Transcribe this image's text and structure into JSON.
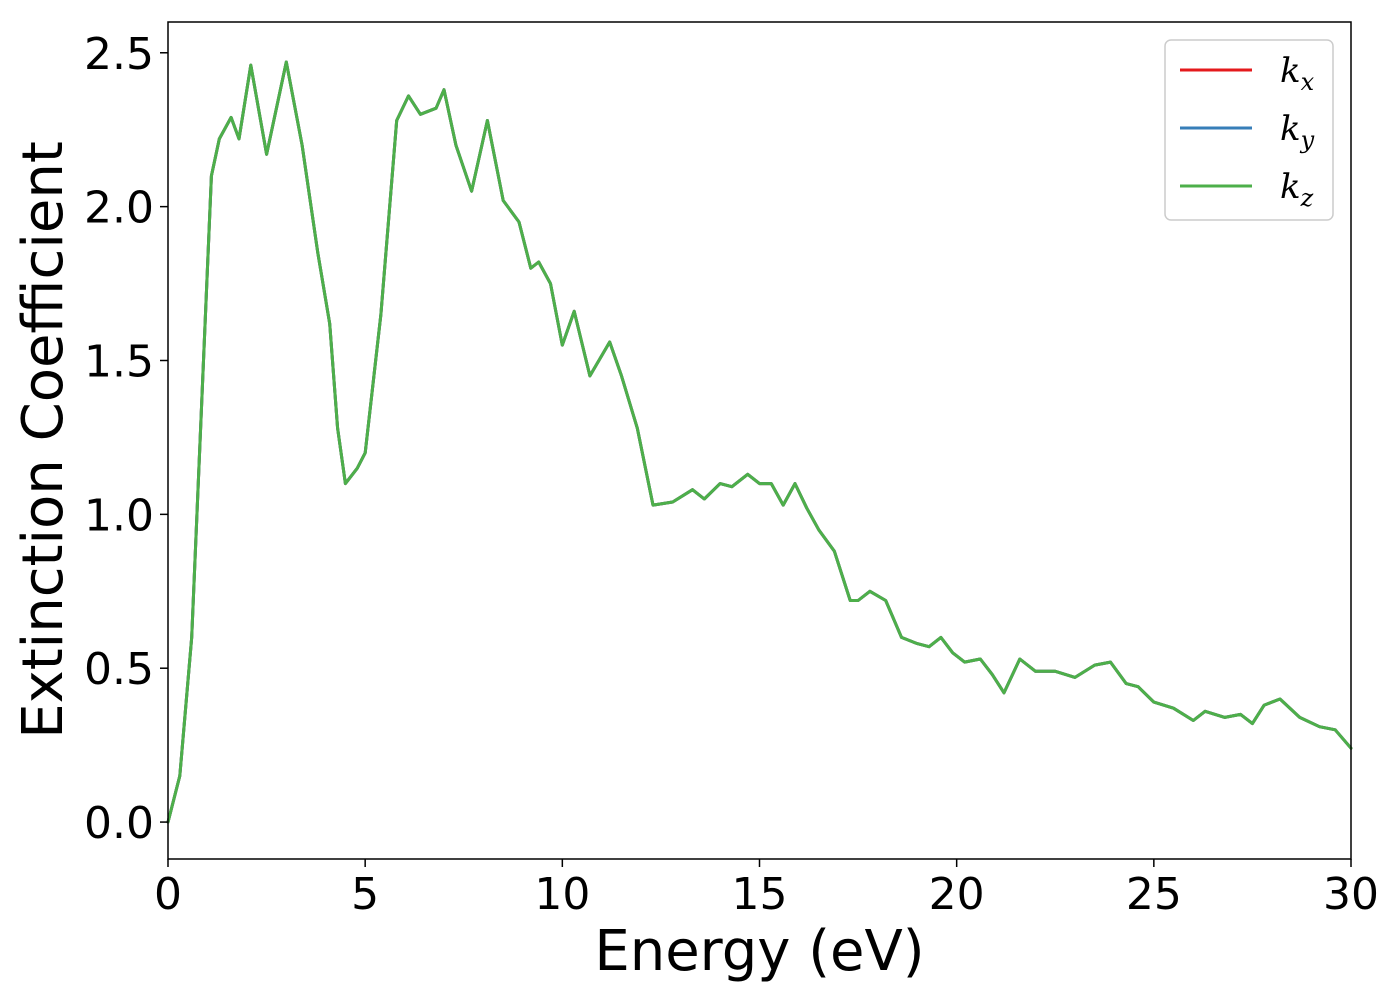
{
  "chart_data": {
    "type": "line",
    "xlabel": "Energy (eV)",
    "ylabel": "Extinction Coefficient",
    "xlim": [
      0,
      30
    ],
    "ylim": [
      -0.12,
      2.6
    ],
    "xticks": [
      0,
      5,
      10,
      15,
      20,
      25,
      30
    ],
    "xtick_labels": [
      "0",
      "5",
      "10",
      "15",
      "20",
      "25",
      "30"
    ],
    "yticks": [
      0.0,
      0.5,
      1.0,
      1.5,
      2.0,
      2.5
    ],
    "ytick_labels": [
      "0.0",
      "0.5",
      "1.0",
      "1.5",
      "2.0",
      "2.5"
    ],
    "grid": false,
    "legend": "top-right",
    "x": [
      0,
      0.3,
      0.6,
      0.9,
      1.1,
      1.3,
      1.6,
      1.8,
      2.1,
      2.5,
      3.0,
      3.4,
      3.8,
      4.1,
      4.3,
      4.5,
      4.8,
      5.0,
      5.4,
      5.8,
      6.1,
      6.4,
      6.8,
      7.0,
      7.3,
      7.7,
      8.1,
      8.5,
      8.9,
      9.2,
      9.4,
      9.7,
      10.0,
      10.3,
      10.7,
      11.2,
      11.5,
      11.9,
      12.3,
      12.8,
      13.3,
      13.6,
      14.0,
      14.3,
      14.7,
      15.0,
      15.3,
      15.6,
      15.9,
      16.2,
      16.5,
      16.9,
      17.3,
      17.5,
      17.8,
      18.2,
      18.6,
      19.0,
      19.3,
      19.6,
      19.9,
      20.2,
      20.6,
      20.9,
      21.2,
      21.6,
      22.0,
      22.5,
      23.0,
      23.5,
      23.9,
      24.3,
      24.6,
      25.0,
      25.5,
      26.0,
      26.3,
      26.8,
      27.2,
      27.5,
      27.8,
      28.2,
      28.7,
      29.2,
      29.6,
      30.0
    ],
    "series": [
      {
        "name": "k_x",
        "color": "#e41a1c",
        "values": [
          0.0,
          0.15,
          0.6,
          1.5,
          2.1,
          2.22,
          2.29,
          2.22,
          2.46,
          2.17,
          2.47,
          2.2,
          1.85,
          1.62,
          1.28,
          1.1,
          1.15,
          1.2,
          1.65,
          2.28,
          2.36,
          2.3,
          2.32,
          2.38,
          2.2,
          2.05,
          2.28,
          2.02,
          1.95,
          1.8,
          1.82,
          1.75,
          1.55,
          1.66,
          1.45,
          1.56,
          1.45,
          1.28,
          1.03,
          1.04,
          1.08,
          1.05,
          1.1,
          1.09,
          1.13,
          1.1,
          1.1,
          1.03,
          1.1,
          1.02,
          0.95,
          0.88,
          0.72,
          0.72,
          0.75,
          0.72,
          0.6,
          0.58,
          0.57,
          0.6,
          0.55,
          0.52,
          0.53,
          0.48,
          0.42,
          0.53,
          0.49,
          0.49,
          0.47,
          0.51,
          0.52,
          0.45,
          0.44,
          0.39,
          0.37,
          0.33,
          0.36,
          0.34,
          0.35,
          0.32,
          0.38,
          0.4,
          0.34,
          0.31,
          0.3,
          0.24
        ]
      },
      {
        "name": "k_y",
        "color": "#377eb8",
        "values": [
          0.0,
          0.15,
          0.6,
          1.5,
          2.1,
          2.22,
          2.29,
          2.22,
          2.46,
          2.17,
          2.47,
          2.2,
          1.85,
          1.62,
          1.28,
          1.1,
          1.15,
          1.2,
          1.65,
          2.28,
          2.36,
          2.3,
          2.32,
          2.38,
          2.2,
          2.05,
          2.28,
          2.02,
          1.95,
          1.8,
          1.82,
          1.75,
          1.55,
          1.66,
          1.45,
          1.56,
          1.45,
          1.28,
          1.03,
          1.04,
          1.08,
          1.05,
          1.1,
          1.09,
          1.13,
          1.1,
          1.1,
          1.03,
          1.1,
          1.02,
          0.95,
          0.88,
          0.72,
          0.72,
          0.75,
          0.72,
          0.6,
          0.58,
          0.57,
          0.6,
          0.55,
          0.52,
          0.53,
          0.48,
          0.42,
          0.53,
          0.49,
          0.49,
          0.47,
          0.51,
          0.52,
          0.45,
          0.44,
          0.39,
          0.37,
          0.33,
          0.36,
          0.34,
          0.35,
          0.32,
          0.38,
          0.4,
          0.34,
          0.31,
          0.3,
          0.24
        ]
      },
      {
        "name": "k_z",
        "color": "#4daf4a",
        "values": [
          0.0,
          0.15,
          0.6,
          1.5,
          2.1,
          2.22,
          2.29,
          2.22,
          2.46,
          2.17,
          2.47,
          2.2,
          1.85,
          1.62,
          1.28,
          1.1,
          1.15,
          1.2,
          1.65,
          2.28,
          2.36,
          2.3,
          2.32,
          2.38,
          2.2,
          2.05,
          2.28,
          2.02,
          1.95,
          1.8,
          1.82,
          1.75,
          1.55,
          1.66,
          1.45,
          1.56,
          1.45,
          1.28,
          1.03,
          1.04,
          1.08,
          1.05,
          1.1,
          1.09,
          1.13,
          1.1,
          1.1,
          1.03,
          1.1,
          1.02,
          0.95,
          0.88,
          0.72,
          0.72,
          0.75,
          0.72,
          0.6,
          0.58,
          0.57,
          0.6,
          0.55,
          0.52,
          0.53,
          0.48,
          0.42,
          0.53,
          0.49,
          0.49,
          0.47,
          0.51,
          0.52,
          0.45,
          0.44,
          0.39,
          0.37,
          0.33,
          0.36,
          0.34,
          0.35,
          0.32,
          0.38,
          0.4,
          0.34,
          0.31,
          0.3,
          0.24
        ]
      }
    ],
    "legend_entries": [
      {
        "base": "k",
        "sub": "x"
      },
      {
        "base": "k",
        "sub": "y"
      },
      {
        "base": "k",
        "sub": "z"
      }
    ]
  }
}
